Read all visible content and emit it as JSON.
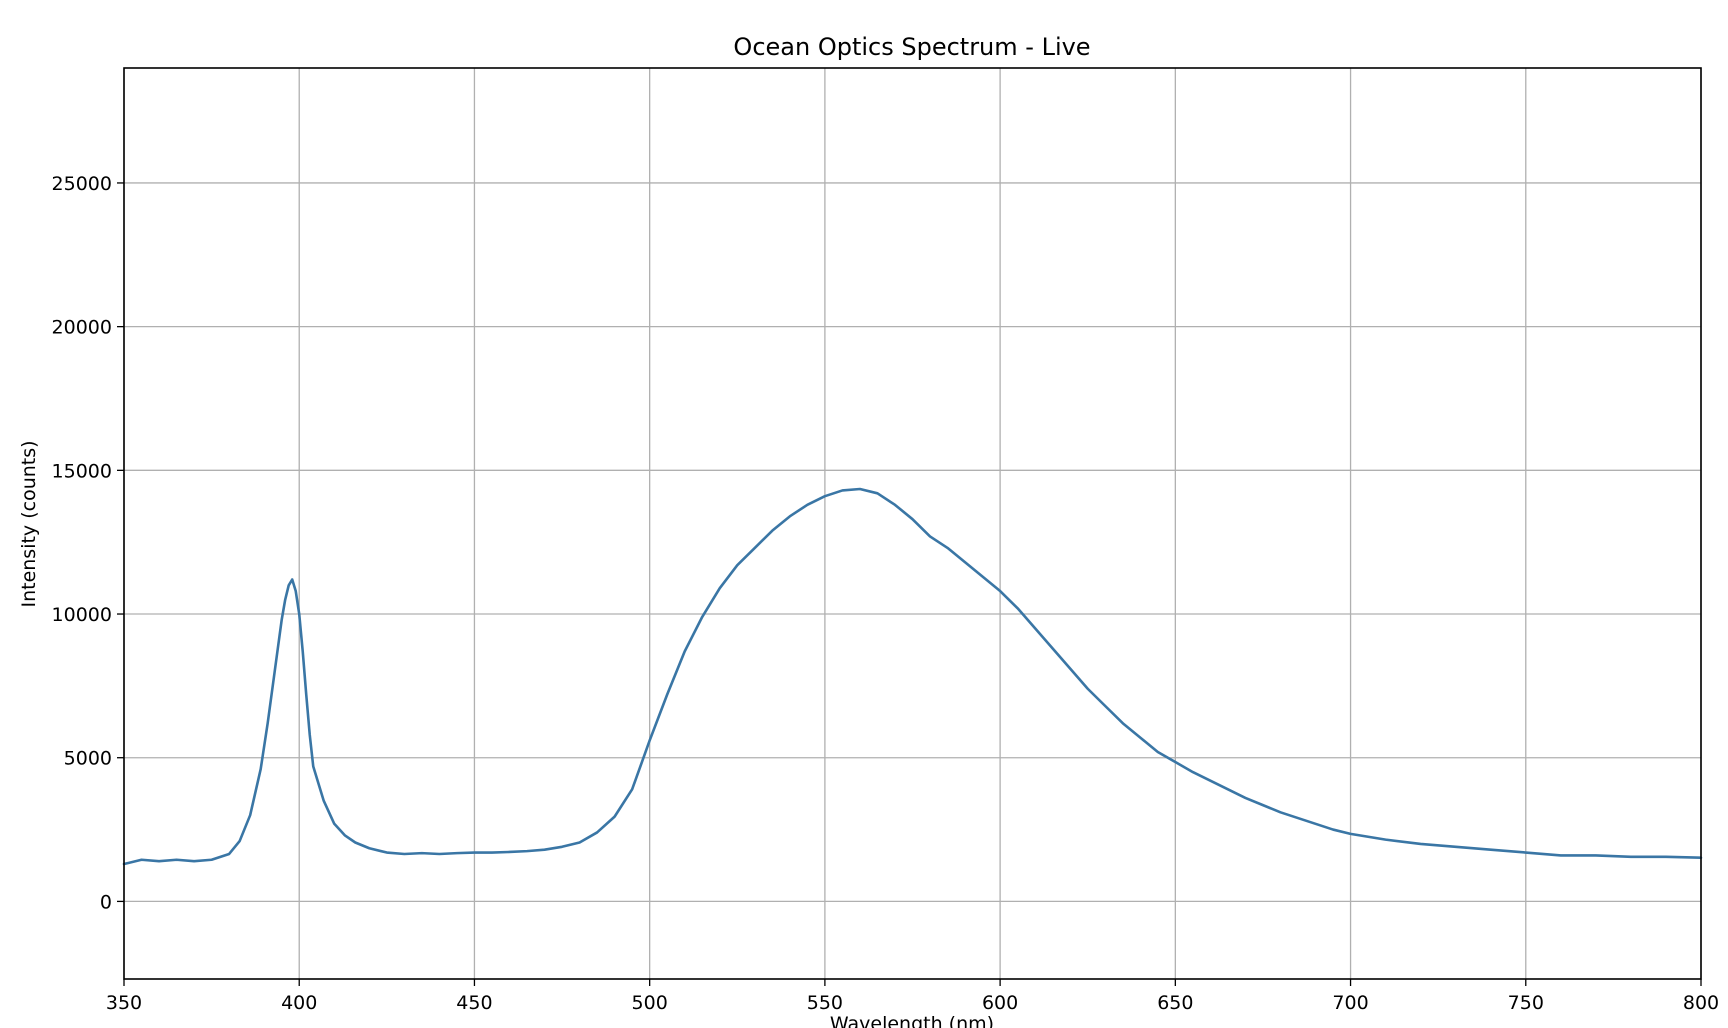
{
  "chart_data": {
    "type": "line",
    "title": "Ocean Optics Spectrum - Live",
    "xlabel": "Wavelength (nm)",
    "ylabel": "Intensity (counts)",
    "xlim": [
      350,
      800
    ],
    "ylim": [
      -2700,
      29000
    ],
    "x_ticks": [
      350,
      400,
      450,
      500,
      550,
      600,
      650,
      700,
      750,
      800
    ],
    "y_ticks": [
      0,
      5000,
      10000,
      15000,
      20000,
      25000
    ],
    "grid": true,
    "legend": "none",
    "series_color": "#3a76a5",
    "series": [
      {
        "x": [
          350,
          355,
          360,
          365,
          370,
          375,
          380,
          383,
          386,
          389,
          391,
          393,
          395,
          396,
          397,
          398,
          399,
          400,
          401,
          402,
          403,
          404,
          405,
          407,
          410,
          413,
          416,
          420,
          425,
          430,
          435,
          440,
          445,
          450,
          455,
          460,
          465,
          470,
          475,
          480,
          485,
          490,
          495,
          500,
          505,
          510,
          515,
          520,
          525,
          530,
          535,
          540,
          545,
          550,
          555,
          560,
          565,
          570,
          575,
          580,
          585,
          590,
          595,
          600,
          605,
          610,
          615,
          620,
          625,
          630,
          635,
          640,
          645,
          650,
          655,
          660,
          665,
          670,
          675,
          680,
          685,
          690,
          695,
          700,
          710,
          720,
          730,
          740,
          750,
          760,
          770,
          780,
          790,
          800
        ],
        "y": [
          1300,
          1450,
          1400,
          1450,
          1400,
          1450,
          1650,
          2100,
          3000,
          4600,
          6200,
          8000,
          9800,
          10500,
          11000,
          11200,
          10800,
          10000,
          8700,
          7200,
          5800,
          4700,
          4300,
          3500,
          2700,
          2300,
          2050,
          1850,
          1700,
          1650,
          1680,
          1650,
          1680,
          1700,
          1700,
          1720,
          1750,
          1800,
          1900,
          2050,
          2400,
          2950,
          3900,
          5600,
          7200,
          8700,
          9900,
          10900,
          11700,
          12300,
          12900,
          13400,
          13800,
          14100,
          14300,
          14350,
          14200,
          13800,
          13300,
          12700,
          12300,
          11800,
          11300,
          10800,
          10200,
          9500,
          8800,
          8100,
          7400,
          6800,
          6200,
          5700,
          5200,
          4850,
          4500,
          4200,
          3900,
          3600,
          3350,
          3100,
          2900,
          2700,
          2500,
          2350,
          2150,
          2000,
          1900,
          1800,
          1700,
          1600,
          1600,
          1550,
          1550,
          1520
        ]
      }
    ]
  }
}
